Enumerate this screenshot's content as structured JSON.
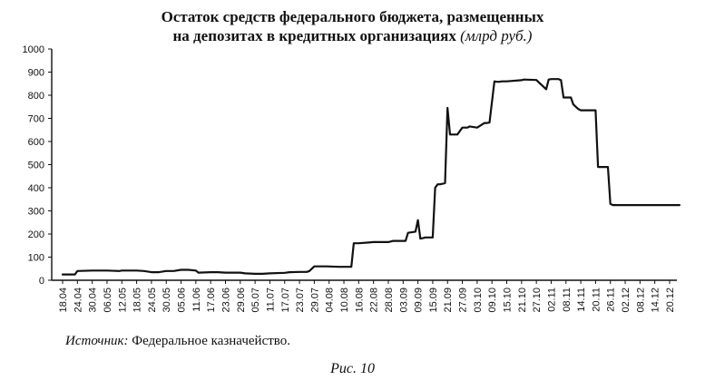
{
  "chart_data": {
    "type": "line",
    "title_line1": "Остаток средств федерального бюджета, размещенных",
    "title_line2": "на депозитах в кредитных организациях",
    "title_unit": "(млрд руб.)",
    "xlabel": "",
    "ylabel": "",
    "ylim": [
      0,
      1000
    ],
    "yticks": [
      0,
      100,
      200,
      300,
      400,
      500,
      600,
      700,
      800,
      900,
      1000
    ],
    "xtick_labels": [
      "18.04",
      "24.04",
      "30.04",
      "06.05",
      "12.05",
      "18.05",
      "24.05",
      "30.05",
      "05.06",
      "11.06",
      "17.06",
      "23.06",
      "29.06",
      "05.07",
      "11.07",
      "17.07",
      "23.07",
      "29.07",
      "04.08",
      "10.08",
      "16.08",
      "22.08",
      "28.08",
      "03.09",
      "09.09",
      "15.09",
      "21.09",
      "27.09",
      "03.10",
      "09.10",
      "15.10",
      "21.10",
      "27.10",
      "02.11",
      "08.11",
      "14.11",
      "20.11",
      "26.11",
      "02.12",
      "08.12",
      "14.12",
      "20.12"
    ],
    "grid": false,
    "color": "#111111",
    "series": [
      {
        "x": [
          "18.04",
          "23.04",
          "24.04",
          "30.04",
          "06.05",
          "11.05",
          "12.05",
          "18.05",
          "21.05",
          "24.05",
          "27.05",
          "30.05",
          "02.06",
          "05.06",
          "08.06",
          "11.06",
          "12.06",
          "17.06",
          "20.06",
          "23.06",
          "29.06",
          "01.07",
          "05.07",
          "08.07",
          "11.07",
          "17.07",
          "19.07",
          "23.07",
          "26.07",
          "27.07",
          "29.07",
          "03.08",
          "08.08",
          "13.08",
          "14.08",
          "16.08",
          "20.08",
          "22.08",
          "28.08",
          "30.08",
          "04.09",
          "05.09",
          "08.09",
          "09.09",
          "10.09",
          "11.09",
          "12.09",
          "15.09",
          "16.09",
          "17.09",
          "18.09",
          "20.09",
          "21.09",
          "22.09",
          "23.09",
          "24.09",
          "25.09",
          "27.09",
          "29.09",
          "30.09",
          "03.10",
          "06.10",
          "07.10",
          "08.10",
          "10.10",
          "11.10",
          "12.10",
          "13.10",
          "15.10",
          "21.10",
          "22.10",
          "27.10",
          "31.10",
          "01.11",
          "02.11",
          "05.11",
          "06.11",
          "07.11",
          "08.11",
          "10.11",
          "11.11",
          "13.11",
          "14.11",
          "17.11",
          "20.11",
          "21.11",
          "22.11",
          "25.11",
          "26.11",
          "27.11",
          "02.12",
          "08.12",
          "14.12",
          "20.12",
          "24.12"
        ],
        "values": [
          25,
          25,
          40,
          42,
          42,
          40,
          42,
          42,
          40,
          35,
          35,
          40,
          40,
          45,
          45,
          42,
          33,
          35,
          35,
          33,
          33,
          30,
          28,
          28,
          30,
          32,
          35,
          36,
          36,
          40,
          60,
          60,
          58,
          58,
          160,
          160,
          163,
          165,
          165,
          170,
          170,
          205,
          210,
          260,
          180,
          182,
          185,
          185,
          400,
          415,
          415,
          420,
          745,
          630,
          630,
          630,
          630,
          660,
          660,
          665,
          660,
          680,
          680,
          682,
          860,
          858,
          858,
          860,
          860,
          865,
          868,
          866,
          826,
          868,
          870,
          870,
          865,
          790,
          790,
          790,
          760,
          740,
          735,
          735,
          735,
          490,
          490,
          490,
          330,
          325,
          325,
          325,
          325,
          325,
          325
        ]
      }
    ],
    "source_label": "Источник:",
    "source_text": " Федеральное казначейство.",
    "figure_caption": "Рис. 10"
  }
}
